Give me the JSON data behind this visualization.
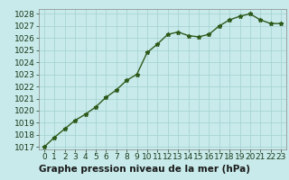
{
  "x": [
    0,
    1,
    2,
    3,
    4,
    5,
    6,
    7,
    8,
    9,
    10,
    11,
    12,
    13,
    14,
    15,
    16,
    17,
    18,
    19,
    20,
    21,
    22,
    23
  ],
  "y": [
    1017.0,
    1017.8,
    1018.5,
    1019.2,
    1019.7,
    1020.3,
    1021.1,
    1021.7,
    1022.5,
    1023.0,
    1024.8,
    1025.5,
    1026.3,
    1026.5,
    1026.2,
    1026.1,
    1026.3,
    1027.0,
    1027.5,
    1027.8,
    1028.0,
    1027.5,
    1027.2,
    1027.2
  ],
  "ylim_min": 1016.8,
  "ylim_max": 1028.4,
  "xlim_min": -0.5,
  "xlim_max": 23.5,
  "yticks": [
    1017,
    1018,
    1019,
    1020,
    1021,
    1022,
    1023,
    1024,
    1025,
    1026,
    1027,
    1028
  ],
  "xticks": [
    0,
    1,
    2,
    3,
    4,
    5,
    6,
    7,
    8,
    9,
    10,
    11,
    12,
    13,
    14,
    15,
    16,
    17,
    18,
    19,
    20,
    21,
    22,
    23
  ],
  "line_color": "#2d5a1b",
  "marker": "*",
  "marker_size": 3.5,
  "plot_bg_color": "#c8eaea",
  "fig_bg_color": "#c8eaea",
  "label_bg_color": "#5ba85b",
  "grid_color": "#a8d4d4",
  "xlabel": "Graphe pression niveau de la mer (hPa)",
  "xlabel_fontsize": 7.5,
  "tick_fontsize": 6.5,
  "line_width": 1.0
}
